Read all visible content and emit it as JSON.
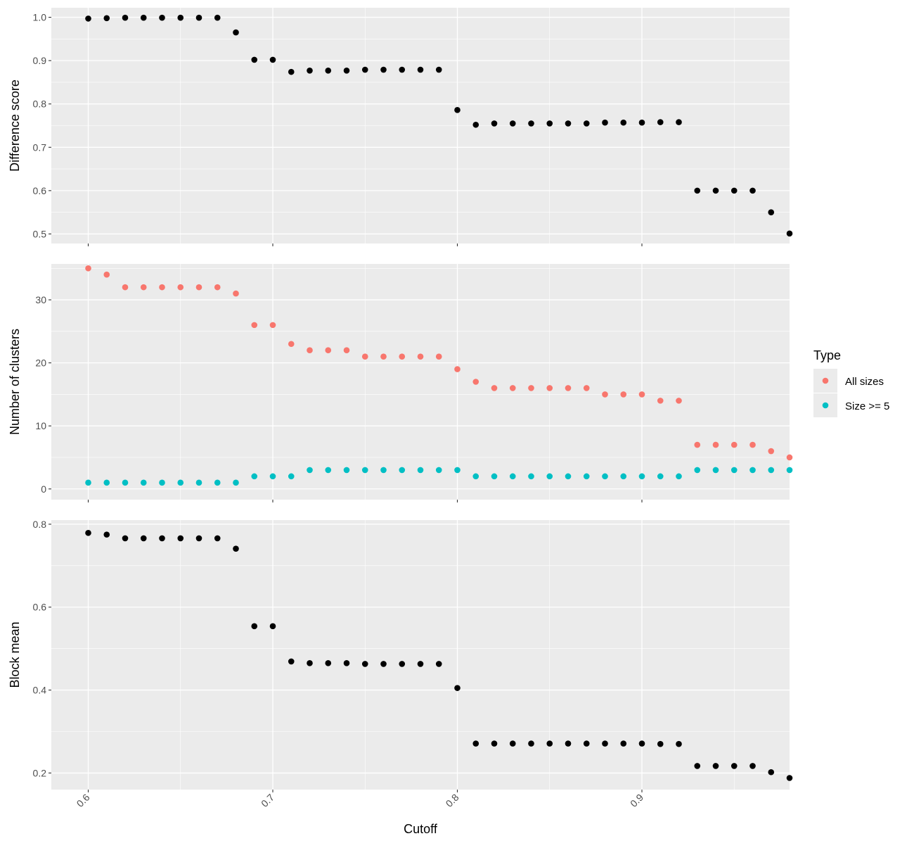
{
  "chart_data": {
    "type": "scatter",
    "xlabel": "Cutoff",
    "x_ticks": [
      0.6,
      0.7,
      0.8,
      0.9
    ],
    "x_tick_labels": [
      "0.6",
      "0.7",
      "0.8",
      "0.9"
    ],
    "xlim": [
      0.58,
      0.98
    ],
    "x": [
      0.6,
      0.61,
      0.62,
      0.63,
      0.64,
      0.65,
      0.66,
      0.67,
      0.68,
      0.69,
      0.7,
      0.71,
      0.72,
      0.73,
      0.74,
      0.75,
      0.76,
      0.77,
      0.78,
      0.79,
      0.8,
      0.81,
      0.82,
      0.83,
      0.84,
      0.85,
      0.86,
      0.87,
      0.88,
      0.89,
      0.9,
      0.91,
      0.92,
      0.93,
      0.94,
      0.95,
      0.96,
      0.97,
      0.98
    ],
    "panels": [
      {
        "ylabel": "Difference score",
        "ylim": [
          0.478,
          1.022
        ],
        "y_ticks": [
          0.5,
          0.6,
          0.7,
          0.8,
          0.9,
          1.0
        ],
        "y_tick_labels": [
          "0.5",
          "0.6",
          "0.7",
          "0.8",
          "0.9",
          "1.0"
        ],
        "series": [
          {
            "color": "#000000",
            "values": [
              0.997,
              0.998,
              0.999,
              0.999,
              0.999,
              0.999,
              0.999,
              0.999,
              0.965,
              0.902,
              0.902,
              0.874,
              0.877,
              0.877,
              0.877,
              0.879,
              0.879,
              0.879,
              0.879,
              0.879,
              0.786,
              0.752,
              0.755,
              0.755,
              0.755,
              0.755,
              0.755,
              0.755,
              0.757,
              0.757,
              0.757,
              0.758,
              0.758,
              0.6,
              0.6,
              0.6,
              0.6,
              0.55,
              0.501
            ]
          }
        ]
      },
      {
        "ylabel": "Number of clusters",
        "ylim": [
          -1.7,
          35.7
        ],
        "y_ticks": [
          0,
          10,
          20,
          30
        ],
        "y_tick_labels": [
          "0",
          "10",
          "20",
          "30"
        ],
        "series": [
          {
            "name": "All sizes",
            "color": "#F8766D",
            "values": [
              35,
              34,
              32,
              32,
              32,
              32,
              32,
              32,
              31,
              26,
              26,
              23,
              22,
              22,
              22,
              21,
              21,
              21,
              21,
              21,
              19,
              17,
              16,
              16,
              16,
              16,
              16,
              16,
              15,
              15,
              15,
              14,
              14,
              7,
              7,
              7,
              7,
              6,
              5
            ]
          },
          {
            "name": "Size >= 5",
            "color": "#00BFC4",
            "values": [
              1,
              1,
              1,
              1,
              1,
              1,
              1,
              1,
              1,
              2,
              2,
              2,
              3,
              3,
              3,
              3,
              3,
              3,
              3,
              3,
              3,
              2,
              2,
              2,
              2,
              2,
              2,
              2,
              2,
              2,
              2,
              2,
              2,
              3,
              3,
              3,
              3,
              3,
              3
            ]
          }
        ]
      },
      {
        "ylabel": "Block mean",
        "ylim": [
          0.16,
          0.81
        ],
        "y_ticks": [
          0.2,
          0.4,
          0.6,
          0.8
        ],
        "y_tick_labels": [
          "0.2",
          "0.4",
          "0.6",
          "0.8"
        ],
        "series": [
          {
            "color": "#000000",
            "values": [
              0.779,
              0.775,
              0.766,
              0.766,
              0.766,
              0.766,
              0.766,
              0.766,
              0.741,
              0.554,
              0.554,
              0.469,
              0.465,
              0.465,
              0.465,
              0.463,
              0.463,
              0.463,
              0.463,
              0.463,
              0.405,
              0.271,
              0.271,
              0.271,
              0.271,
              0.271,
              0.271,
              0.271,
              0.271,
              0.271,
              0.271,
              0.27,
              0.27,
              0.217,
              0.217,
              0.217,
              0.217,
              0.202,
              0.188
            ]
          }
        ]
      }
    ],
    "legend": {
      "title": "Type",
      "placement": "right",
      "entries": [
        {
          "label": "All sizes",
          "color": "#F8766D"
        },
        {
          "label": "Size >= 5",
          "color": "#00BFC4"
        }
      ]
    },
    "grid": true,
    "panel_background": "#EBEBEB",
    "grid_color": "#FFFFFF",
    "tick_color": "#333333",
    "text_color": "#4D4D4D"
  }
}
